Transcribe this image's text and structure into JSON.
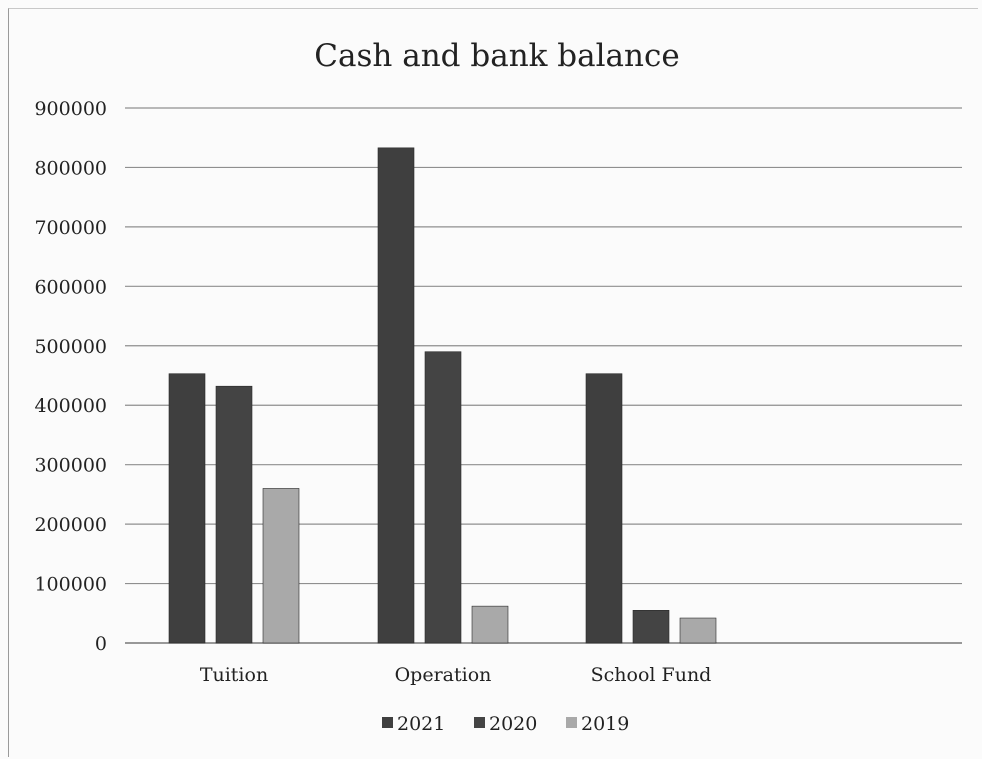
{
  "chart_data": {
    "type": "bar",
    "title": "Cash  and bank balance",
    "categories": [
      "Tuition",
      "Operation",
      "School Fund"
    ],
    "series": [
      {
        "name": "2021",
        "values": [
          453000,
          833000,
          453000
        ],
        "color": "#3f3f3f"
      },
      {
        "name": "2020",
        "values": [
          432000,
          490000,
          55000
        ],
        "color": "#444444"
      },
      {
        "name": "2019",
        "values": [
          260000,
          62000,
          42000
        ],
        "color": "#a9a9a9"
      }
    ],
    "ylim": [
      0,
      900000
    ],
    "yticks": [
      "0",
      "100000",
      "200000",
      "300000",
      "400000",
      "500000",
      "600000",
      "700000",
      "800000",
      "900000"
    ],
    "xlabel": "",
    "ylabel": "",
    "grid": true,
    "legend_position": "bottom"
  }
}
